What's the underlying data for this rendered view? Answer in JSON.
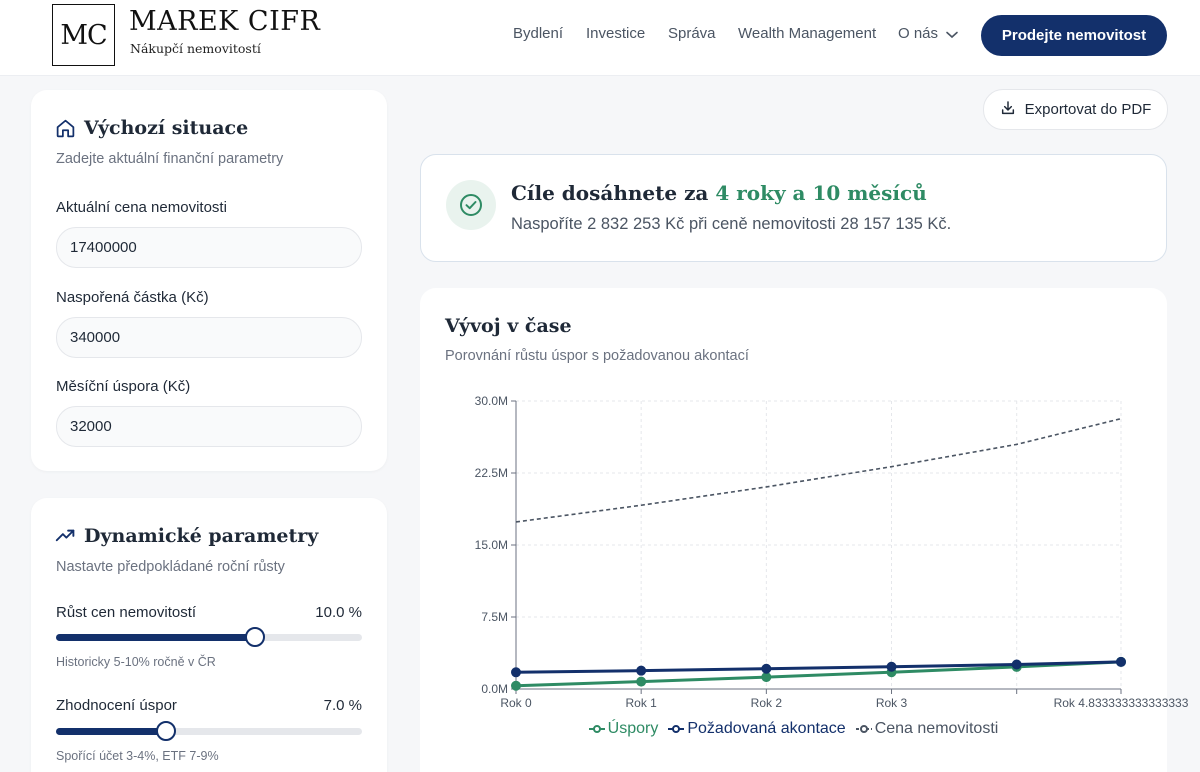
{
  "header": {
    "logo_mark": "MC",
    "brand_name": "MAREK CIFR",
    "brand_sub": "Nákupčí nemovitostí",
    "nav": [
      "Bydlení",
      "Investice",
      "Správa",
      "Wealth Management",
      "O nás"
    ],
    "cta": "Prodejte nemovitost"
  },
  "initial": {
    "title": "Výchozí situace",
    "subtitle": "Zadejte aktuální finanční parametry",
    "fields": [
      {
        "label": "Aktuální cena nemovitosti",
        "value": "17400000"
      },
      {
        "label": "Naspořená částka (Kč)",
        "value": "340000"
      },
      {
        "label": "Měsíční úspora (Kč)",
        "value": "32000"
      }
    ]
  },
  "dynamic": {
    "title": "Dynamické parametry",
    "subtitle": "Nastavte předpokládané roční růsty",
    "sliders": [
      {
        "label": "Růst cen nemovitostí",
        "value_text": "10.0 %",
        "level": 0.65,
        "hint": "Historicky 5-10% ročně v ČR"
      },
      {
        "label": "Zhodnocení úspor",
        "value_text": "7.0 %",
        "level": 0.36,
        "hint": "Spořící účet 3-4%, ETF 7-9%"
      }
    ]
  },
  "export_label": "Exportovat do PDF",
  "result": {
    "title_prefix": "Cíle dosáhnete za ",
    "title_accent": "4 roky a 10 měsíců",
    "subtitle": "Naspoříte 2 832 253 Kč při ceně nemovitosti 28 157 135 Kč."
  },
  "colors": {
    "primary": "#13306b",
    "accent": "#2e8b64",
    "price_line": "#4b5563"
  },
  "icons": {
    "initial": "home-icon",
    "dynamic": "trending-up-icon",
    "export": "download-icon",
    "result": "check-circle-icon",
    "nav_dropdown": "chevron-down-icon"
  },
  "chart_data": {
    "type": "line",
    "title": "Vývoj v čase",
    "subtitle": "Porovnání růstu úspor s požadovanou akontací",
    "x": [
      0,
      1,
      2,
      3,
      4,
      4.833333333333333
    ],
    "categories": [
      "Rok 0",
      "Rok 1",
      "Rok 2",
      "Rok 3",
      "",
      "Rok 4.833333333333333"
    ],
    "ylim": [
      0,
      30
    ],
    "y_ticks": [
      "0.0M",
      "7.5M",
      "15.0M",
      "22.5M",
      "30.0M"
    ],
    "grid": true,
    "legend_position": "bottom",
    "series": [
      {
        "name": "Úspory",
        "values": [
          0.34,
          0.77,
          1.24,
          1.75,
          2.3,
          2.83
        ],
        "color": "#2e8b64"
      },
      {
        "name": "Požadovaná akontace",
        "values": [
          1.74,
          1.91,
          2.11,
          2.32,
          2.55,
          2.82
        ],
        "color": "#13306b"
      },
      {
        "name": "Cena nemovitosti",
        "values": [
          17.4,
          19.14,
          21.05,
          23.16,
          25.48,
          28.16
        ],
        "color": "#4b5563",
        "dashed": true
      }
    ]
  }
}
